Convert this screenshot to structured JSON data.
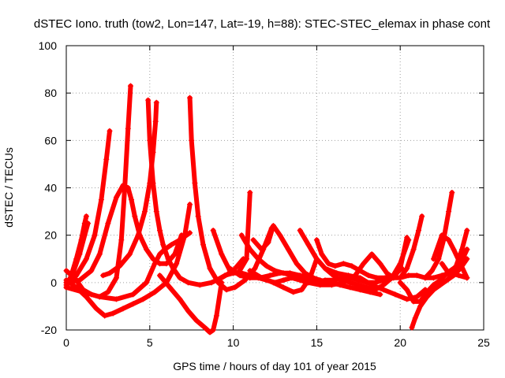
{
  "chart_data": {
    "type": "scatter",
    "title": "dSTEC Iono. truth (tow2, Lon=147, Lat=-19, h=88): STEC-STEC_elemax in phase cont",
    "xlabel": "GPS time / hours of day 101 of year 2015",
    "ylabel": "dSTEC  / TECUs",
    "xlim": [
      0,
      25
    ],
    "ylim": [
      -20,
      100
    ],
    "xticks": [
      "0",
      "5",
      "10",
      "15",
      "20",
      "25"
    ],
    "yticks": [
      "-20",
      "0",
      "20",
      "40",
      "60",
      "80",
      "100"
    ],
    "grid": true,
    "color": "#ff0000",
    "marker": "plus",
    "series": [
      {
        "x": [
          0.0,
          0.3,
          0.6,
          0.9,
          1.1,
          1.2
        ],
        "y": [
          -2,
          3,
          10,
          18,
          25,
          28
        ]
      },
      {
        "x": [
          0.0,
          0.4,
          0.8,
          1.1,
          1.3
        ],
        "y": [
          -1,
          4,
          12,
          20,
          25
        ]
      },
      {
        "x": [
          0.0,
          0.6,
          1.2,
          1.7,
          2.1,
          2.4,
          2.6
        ],
        "y": [
          0,
          3,
          10,
          20,
          35,
          52,
          64
        ]
      },
      {
        "x": [
          0.0,
          0.5,
          1.0,
          1.5,
          2.0,
          2.5,
          3.0,
          3.3,
          3.5,
          3.7,
          3.85
        ],
        "y": [
          5,
          2,
          -3,
          -5,
          -6,
          -4,
          2,
          18,
          40,
          65,
          83
        ]
      },
      {
        "x": [
          0.0,
          0.8,
          1.5,
          2.0,
          2.5,
          3.0,
          3.4,
          3.7,
          3.9,
          4.1,
          4.4,
          4.8,
          5.2,
          5.6,
          6.0,
          6.5,
          6.9
        ],
        "y": [
          0,
          1,
          5,
          12,
          25,
          36,
          41,
          40,
          35,
          28,
          20,
          14,
          10,
          8,
          8,
          12,
          20
        ]
      },
      {
        "x": [
          4.9,
          5.0,
          5.2,
          5.4,
          5.6,
          5.8,
          6.1,
          6.4,
          6.8,
          7.3,
          8.0,
          8.7,
          9.3,
          10.0,
          10.6
        ],
        "y": [
          77,
          60,
          42,
          30,
          22,
          16,
          10,
          6,
          2,
          0,
          -1,
          0,
          2,
          5,
          10
        ]
      },
      {
        "x": [
          5.4,
          5.35,
          5.2,
          5.0,
          4.7,
          4.3,
          3.8,
          3.2,
          2.6,
          2.2
        ],
        "y": [
          76,
          68,
          55,
          42,
          30,
          20,
          12,
          7,
          4,
          3
        ]
      },
      {
        "x": [
          0.0,
          0.6,
          1.2,
          1.8,
          2.3,
          2.8,
          3.4,
          4.0,
          4.6,
          5.3,
          6.0,
          6.6,
          7.1,
          7.4
        ],
        "y": [
          1,
          -2,
          -6,
          -11,
          -14,
          -13,
          -11,
          -9,
          -7,
          -4,
          0,
          8,
          20,
          33
        ]
      },
      {
        "x": [
          0.0,
          1.0,
          2.0,
          3.0,
          4.0,
          4.8,
          5.3,
          5.6,
          5.9,
          6.3,
          6.8,
          7.4
        ],
        "y": [
          -2,
          -4,
          -6,
          -7,
          -5,
          0,
          8,
          12,
          14,
          16,
          18,
          21
        ]
      },
      {
        "x": [
          7.4,
          7.5,
          7.7,
          7.9,
          8.2,
          8.6,
          9.1,
          9.6,
          10.1,
          10.7,
          11.3,
          11.8,
          12.3
        ],
        "y": [
          78,
          60,
          42,
          28,
          16,
          6,
          0,
          -3,
          -2,
          1,
          6,
          14,
          23
        ]
      },
      {
        "x": [
          5.6,
          6.2,
          6.8,
          7.3,
          7.8,
          8.3,
          8.6,
          8.8,
          9.0,
          9.3
        ],
        "y": [
          3,
          -2,
          -7,
          -12,
          -16,
          -19,
          -21,
          -20,
          -14,
          0
        ]
      },
      {
        "x": [
          8.8,
          9.3,
          9.8,
          10.3,
          10.8,
          11.0
        ],
        "y": [
          22,
          12,
          5,
          4,
          10,
          38
        ]
      },
      {
        "x": [
          9.0,
          9.5,
          10.0,
          10.5,
          11.0,
          11.5,
          12.0,
          12.5,
          13.0,
          13.5,
          14.0,
          14.5,
          15.0,
          15.5,
          16.0,
          16.5,
          17.0,
          17.5,
          18.0,
          18.5,
          19.0,
          19.5,
          20.0,
          20.5,
          21.0,
          21.5,
          22.0,
          22.5,
          23.0,
          23.5,
          24.0
        ],
        "y": [
          1,
          3,
          4,
          4,
          3,
          2,
          1,
          0,
          1,
          2,
          1,
          0,
          0,
          1,
          1,
          2,
          2,
          1,
          0,
          0,
          1,
          2,
          2,
          3,
          3,
          2,
          2,
          3,
          4,
          3,
          2
        ]
      },
      {
        "x": [
          9.8,
          10.4,
          11.0,
          11.6,
          12.2,
          12.8,
          13.4,
          14.0,
          14.6,
          15.2,
          15.8,
          16.4,
          17.0,
          17.6,
          18.2,
          18.8
        ],
        "y": [
          6,
          3,
          2,
          2,
          3,
          4,
          4,
          3,
          2,
          1,
          0,
          -1,
          -2,
          -3,
          -4,
          -5
        ]
      },
      {
        "x": [
          10.5,
          11.0,
          11.5,
          12.0,
          12.5,
          13.0,
          13.6,
          14.1,
          14.7,
          15.2,
          15.8
        ],
        "y": [
          20,
          14,
          10,
          7,
          5,
          4,
          3,
          2,
          1,
          0,
          0
        ]
      },
      {
        "x": [
          11.2,
          11.7,
          12.1,
          12.4,
          12.8,
          13.3,
          13.8,
          14.3,
          14.8,
          15.2
        ],
        "y": [
          18,
          14,
          17,
          24,
          20,
          14,
          8,
          4,
          2,
          1
        ]
      },
      {
        "x": [
          11.0,
          11.7,
          12.4,
          13.0,
          13.6,
          14.1,
          14.6,
          15.0
        ],
        "y": [
          5,
          2,
          0,
          -2,
          -4,
          -3,
          2,
          10
        ]
      },
      {
        "x": [
          14.0,
          14.5,
          15.0,
          15.5,
          16.0,
          16.5,
          17.0,
          17.5,
          18.0,
          18.5,
          19.0,
          19.5,
          20.0,
          20.5
        ],
        "y": [
          22,
          16,
          10,
          6,
          3,
          1,
          0,
          -1,
          -2,
          -3,
          -1,
          2,
          8,
          18
        ]
      },
      {
        "x": [
          15.0,
          15.3,
          15.7,
          16.1,
          16.6,
          17.1,
          17.6,
          18.1,
          18.6,
          19.1,
          19.6,
          20.1
        ],
        "y": [
          18,
          12,
          8,
          7,
          8,
          7,
          5,
          3,
          2,
          2,
          3,
          6
        ]
      },
      {
        "x": [
          14.5,
          15.2,
          15.9,
          16.6,
          17.3,
          17.8,
          18.3,
          18.8,
          19.2,
          19.6,
          20.0,
          20.4
        ],
        "y": [
          0,
          -1,
          -1,
          0,
          3,
          8,
          12,
          8,
          4,
          2,
          6,
          19
        ]
      },
      {
        "x": [
          15.5,
          16.2,
          16.9,
          17.6,
          18.3,
          19.0,
          19.7,
          20.4,
          21.0,
          21.5
        ],
        "y": [
          6,
          4,
          3,
          2,
          -1,
          -3,
          -5,
          -7,
          -6,
          -3
        ]
      },
      {
        "x": [
          20.0,
          20.4,
          20.8,
          21.2,
          21.6,
          22.0,
          22.4,
          22.8,
          23.2,
          23.6,
          24.0
        ],
        "y": [
          0,
          -3,
          -8,
          -8,
          -4,
          -1,
          1,
          4,
          6,
          8,
          14
        ]
      },
      {
        "x": [
          20.7,
          20.9,
          21.2,
          21.6,
          22.0,
          22.4,
          22.8,
          23.2,
          23.6,
          24.0
        ],
        "y": [
          -19,
          -15,
          -10,
          -6,
          -3,
          -1,
          1,
          3,
          6,
          10
        ]
      },
      {
        "x": [
          20.0,
          20.4,
          20.8,
          21.1,
          21.3
        ],
        "y": [
          2,
          6,
          14,
          22,
          28
        ]
      },
      {
        "x": [
          21.5,
          21.9,
          22.3,
          22.6,
          22.9,
          23.1
        ],
        "y": [
          2,
          5,
          10,
          18,
          30,
          38
        ]
      },
      {
        "x": [
          22.0,
          22.5,
          22.9,
          23.2,
          23.6,
          24.0
        ],
        "y": [
          10,
          20,
          18,
          14,
          8,
          2
        ]
      },
      {
        "x": [
          22.5,
          22.9,
          23.3,
          23.7,
          24.0
        ],
        "y": [
          8,
          4,
          6,
          14,
          22
        ]
      },
      {
        "x": [
          22.8,
          23.2,
          23.6,
          24.0
        ],
        "y": [
          1,
          4,
          8,
          14
        ]
      }
    ]
  }
}
